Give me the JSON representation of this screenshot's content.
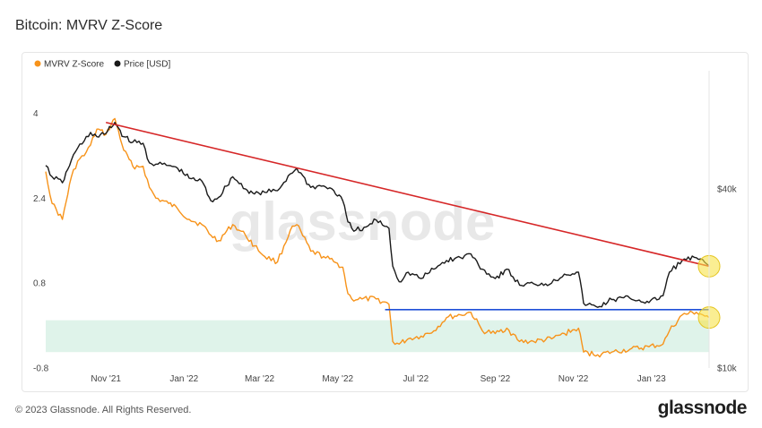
{
  "title": "Bitcoin: MVRV Z-Score",
  "footer": {
    "copyright": "© 2023 Glassnode. All Rights Reserved.",
    "logo": "glassnode"
  },
  "watermark": "glassnode",
  "colors": {
    "mvrv": "#f7931a",
    "price": "#1a1a1a",
    "trendline": "#d62728",
    "support": "#1f4fd8",
    "zone": "#dff3ea",
    "highlight": "#f7e34a"
  },
  "chart_data": {
    "type": "line",
    "title": "Bitcoin: MVRV Z-Score",
    "legend": {
      "position": "top-left",
      "items": [
        {
          "label": "MVRV Z-Score",
          "color": "#f7931a"
        },
        {
          "label": "Price [USD]",
          "color": "#1a1a1a"
        }
      ]
    },
    "x_ticks": [
      "Nov '21",
      "Jan '22",
      "Mar '22",
      "May '22",
      "Jul '22",
      "Sep '22",
      "Nov '22",
      "Jan '23"
    ],
    "x_range": [
      "2021-09-15",
      "2023-02-15"
    ],
    "y_left": {
      "ticks": [
        4,
        2.4,
        0.8,
        -0.8
      ],
      "tick_labels": [
        "4",
        "2.4",
        "0.8",
        "-0.8"
      ],
      "range": [
        -0.8,
        4.8
      ]
    },
    "y_right": {
      "ticks": [
        40000,
        10000
      ],
      "tick_labels": [
        "$40k",
        "$10k"
      ],
      "scale": "log",
      "range": [
        10000,
        100000
      ]
    },
    "grid": false,
    "green_zone": {
      "from": -0.5,
      "to": 0.1
    },
    "series": [
      {
        "name": "MVRV Z-Score",
        "axis": "left",
        "x": [
          "2021-09-15",
          "2021-09-20",
          "2021-09-28",
          "2021-10-05",
          "2021-10-10",
          "2021-10-15",
          "2021-10-20",
          "2021-10-25",
          "2021-11-01",
          "2021-11-08",
          "2021-11-15",
          "2021-11-22",
          "2021-11-30",
          "2021-12-05",
          "2021-12-10",
          "2021-12-20",
          "2021-12-27",
          "2022-01-05",
          "2022-01-15",
          "2022-01-22",
          "2022-01-28",
          "2022-02-08",
          "2022-02-18",
          "2022-02-25",
          "2022-03-05",
          "2022-03-15",
          "2022-03-25",
          "2022-03-30",
          "2022-04-10",
          "2022-04-20",
          "2022-04-28",
          "2022-05-05",
          "2022-05-09",
          "2022-05-12",
          "2022-05-20",
          "2022-05-31",
          "2022-06-10",
          "2022-06-13",
          "2022-06-18",
          "2022-06-25",
          "2022-07-05",
          "2022-07-15",
          "2022-07-25",
          "2022-08-05",
          "2022-08-13",
          "2022-08-22",
          "2022-09-01",
          "2022-09-10",
          "2022-09-20",
          "2022-10-01",
          "2022-10-15",
          "2022-10-25",
          "2022-11-05",
          "2022-11-09",
          "2022-11-20",
          "2022-12-01",
          "2022-12-15",
          "2022-12-30",
          "2023-01-10",
          "2023-01-15",
          "2023-01-25",
          "2023-02-05",
          "2023-02-15"
        ],
        "values": [
          2.9,
          2.3,
          2.0,
          2.8,
          3.1,
          3.2,
          3.4,
          3.7,
          3.6,
          3.9,
          3.3,
          3.0,
          3.0,
          2.6,
          2.4,
          2.3,
          2.2,
          2.0,
          1.9,
          1.7,
          1.6,
          1.9,
          1.7,
          1.5,
          1.3,
          1.2,
          1.8,
          1.9,
          1.4,
          1.3,
          1.2,
          1.1,
          0.6,
          0.5,
          0.5,
          0.5,
          0.4,
          -0.3,
          -0.35,
          -0.25,
          -0.2,
          -0.1,
          0.15,
          0.2,
          0.25,
          -0.1,
          -0.15,
          -0.05,
          -0.3,
          -0.3,
          -0.25,
          -0.15,
          -0.05,
          -0.5,
          -0.55,
          -0.5,
          -0.45,
          -0.4,
          -0.35,
          -0.1,
          0.2,
          0.25,
          0.15
        ]
      },
      {
        "name": "Price [USD]",
        "axis": "right",
        "x": [
          "2021-09-15",
          "2021-09-20",
          "2021-09-28",
          "2021-10-05",
          "2021-10-10",
          "2021-10-15",
          "2021-10-20",
          "2021-10-25",
          "2021-11-01",
          "2021-11-08",
          "2021-11-15",
          "2021-11-22",
          "2021-11-30",
          "2021-12-05",
          "2021-12-10",
          "2021-12-20",
          "2021-12-27",
          "2022-01-05",
          "2022-01-15",
          "2022-01-22",
          "2022-01-28",
          "2022-02-08",
          "2022-02-18",
          "2022-02-25",
          "2022-03-05",
          "2022-03-15",
          "2022-03-25",
          "2022-03-30",
          "2022-04-10",
          "2022-04-20",
          "2022-04-28",
          "2022-05-05",
          "2022-05-09",
          "2022-05-12",
          "2022-05-20",
          "2022-05-31",
          "2022-06-10",
          "2022-06-13",
          "2022-06-18",
          "2022-06-25",
          "2022-07-05",
          "2022-07-15",
          "2022-07-25",
          "2022-08-05",
          "2022-08-13",
          "2022-08-22",
          "2022-09-01",
          "2022-09-10",
          "2022-09-20",
          "2022-10-01",
          "2022-10-15",
          "2022-10-25",
          "2022-11-05",
          "2022-11-09",
          "2022-11-20",
          "2022-12-01",
          "2022-12-15",
          "2022-12-30",
          "2023-01-10",
          "2023-01-15",
          "2023-01-25",
          "2023-02-05",
          "2023-02-15"
        ],
        "values": [
          48000,
          44000,
          42000,
          50000,
          55000,
          58000,
          62000,
          60000,
          61500,
          67000,
          60000,
          57500,
          57000,
          49000,
          48500,
          48000,
          47000,
          43500,
          42500,
          36500,
          37500,
          44000,
          40000,
          38500,
          39000,
          39500,
          45000,
          47000,
          40500,
          41000,
          39500,
          36500,
          31000,
          29500,
          29000,
          31500,
          29500,
          22000,
          19500,
          21000,
          20000,
          21500,
          23000,
          23500,
          24200,
          21500,
          20000,
          21500,
          19000,
          19200,
          19300,
          20700,
          21000,
          16500,
          16000,
          17000,
          17200,
          16600,
          17500,
          21000,
          23000,
          23500,
          22000
        ]
      }
    ],
    "annotations": [
      {
        "type": "trendline",
        "axis": "right",
        "from": {
          "x": "2021-11-01",
          "y": 67000
        },
        "to": {
          "x": "2023-02-15",
          "y": 22000
        }
      },
      {
        "type": "hline",
        "axis": "left",
        "y": 0.3,
        "from": "2022-06-07",
        "to": "2023-02-15"
      },
      {
        "type": "highlight-circle",
        "series": "Price [USD]",
        "x": "2023-02-15"
      },
      {
        "type": "highlight-circle",
        "series": "MVRV Z-Score",
        "x": "2023-02-15"
      }
    ]
  }
}
